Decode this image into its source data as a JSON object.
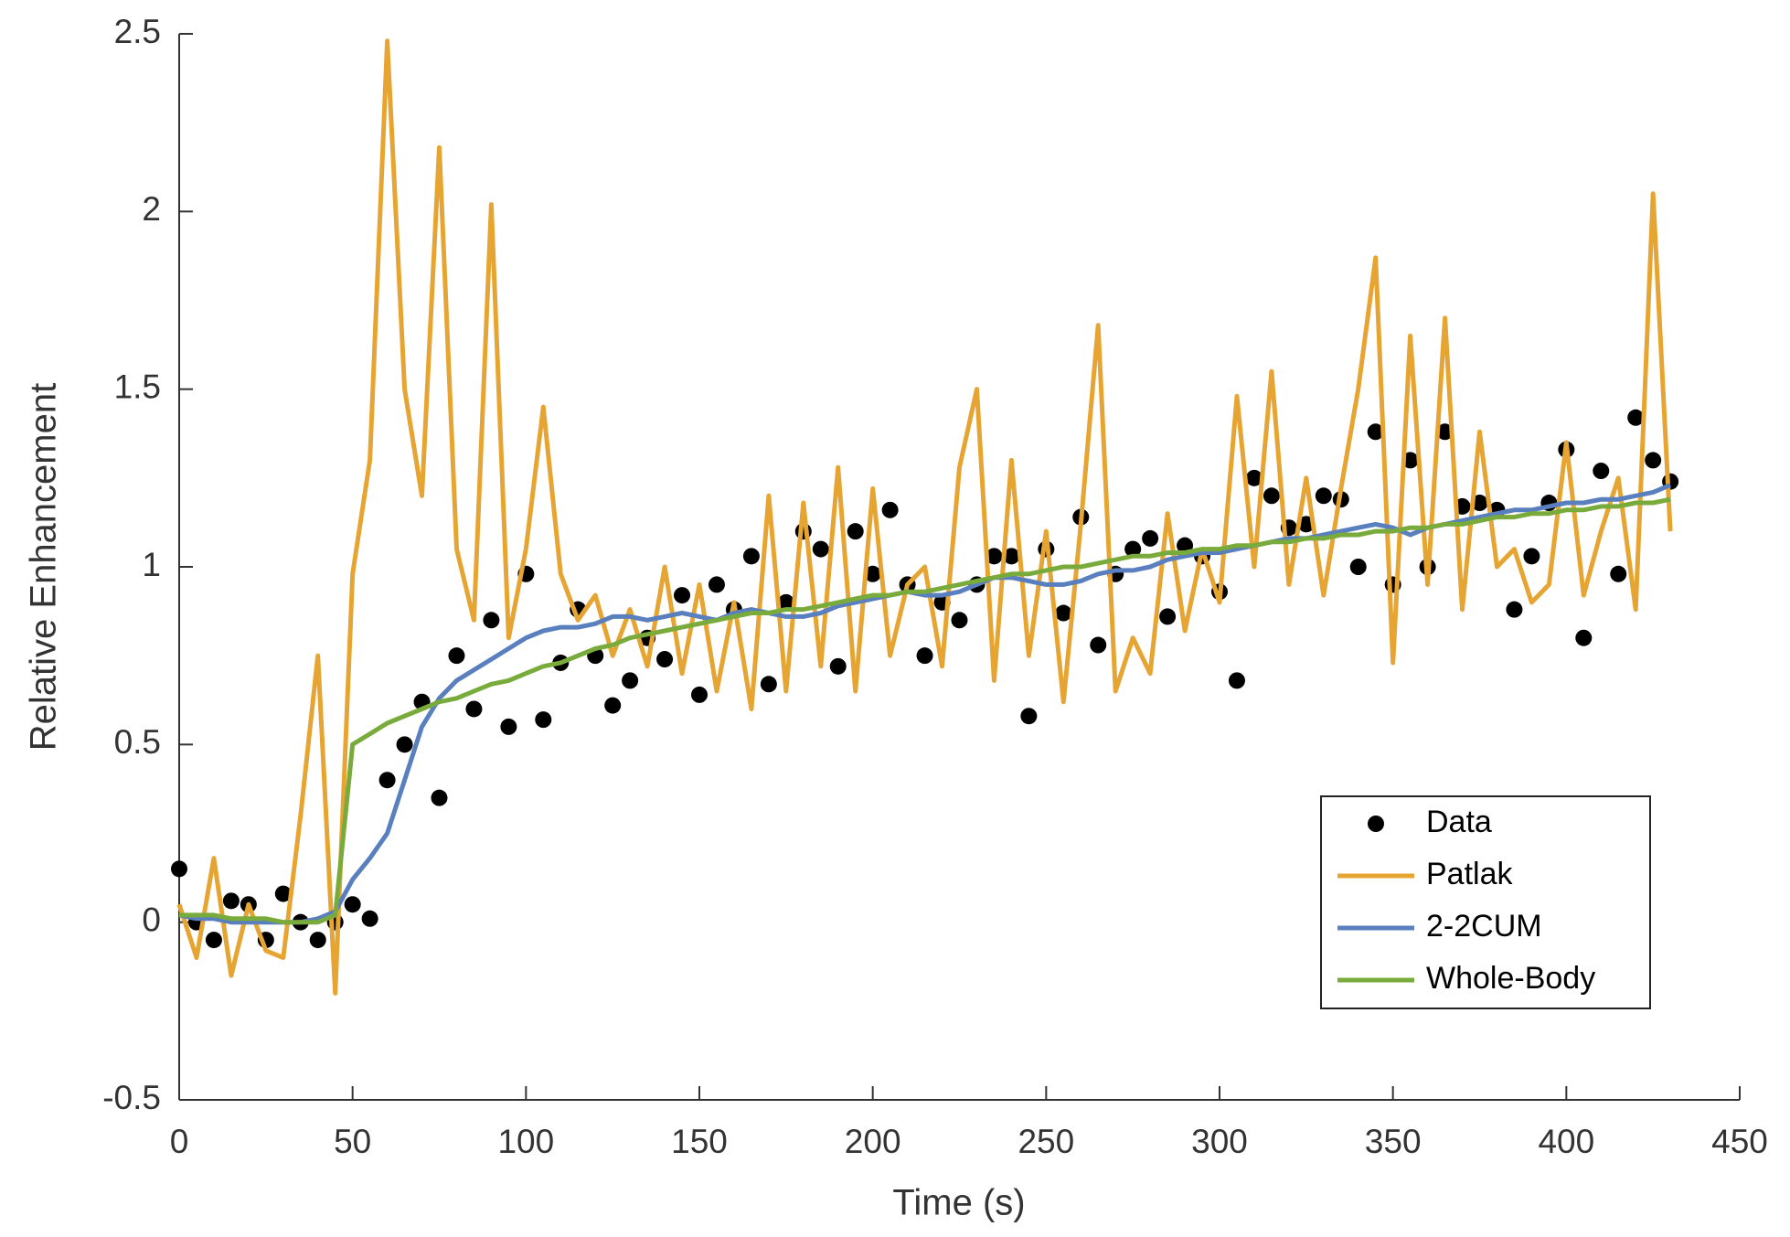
{
  "chart_data": {
    "type": "line",
    "xlabel": "Time (s)",
    "ylabel": "Relative Enhancement",
    "x": [
      0,
      5,
      10,
      15,
      20,
      25,
      30,
      35,
      40,
      45,
      50,
      55,
      60,
      65,
      70,
      75,
      80,
      85,
      90,
      95,
      100,
      105,
      110,
      115,
      120,
      125,
      130,
      135,
      140,
      145,
      150,
      155,
      160,
      165,
      170,
      175,
      180,
      185,
      190,
      195,
      200,
      205,
      210,
      215,
      220,
      225,
      230,
      235,
      240,
      245,
      250,
      255,
      260,
      265,
      270,
      275,
      280,
      285,
      290,
      295,
      300,
      305,
      310,
      315,
      320,
      325,
      330,
      335,
      340,
      345,
      350,
      355,
      360,
      365,
      370,
      375,
      380,
      385,
      390,
      395,
      400,
      405,
      410,
      415,
      420,
      425,
      430
    ],
    "series": [
      {
        "name": "Data",
        "color": "#000000",
        "mode": "markers",
        "values": [
          0.15,
          0.0,
          -0.05,
          0.06,
          0.05,
          -0.05,
          0.08,
          0.0,
          -0.05,
          0.0,
          0.05,
          0.01,
          0.4,
          0.5,
          0.62,
          0.35,
          0.75,
          0.6,
          0.85,
          0.55,
          0.98,
          0.57,
          0.73,
          0.88,
          0.75,
          0.61,
          0.68,
          0.8,
          0.74,
          0.92,
          0.64,
          0.95,
          0.88,
          1.03,
          0.67,
          0.9,
          1.1,
          1.05,
          0.72,
          1.1,
          0.98,
          1.16,
          0.95,
          0.75,
          0.9,
          0.85,
          0.95,
          1.03,
          1.03,
          0.58,
          1.05,
          0.87,
          1.14,
          0.78,
          0.98,
          1.05,
          1.08,
          0.86,
          1.06,
          1.03,
          0.93,
          0.68,
          1.25,
          1.2,
          1.11,
          1.12,
          1.2,
          1.19,
          1.0,
          1.38,
          0.95,
          1.3,
          1.0,
          1.38,
          1.17,
          1.18,
          1.16,
          0.88,
          1.03,
          1.18,
          1.33,
          0.8,
          1.27,
          0.98,
          1.42,
          1.3,
          1.24
        ]
      },
      {
        "name": "Patlak",
        "color": "#e6a532",
        "mode": "line",
        "values": [
          0.05,
          -0.1,
          0.18,
          -0.15,
          0.05,
          -0.08,
          -0.1,
          0.3,
          0.75,
          -0.2,
          0.98,
          1.3,
          2.48,
          1.5,
          1.2,
          2.18,
          1.05,
          0.85,
          2.02,
          0.8,
          1.05,
          1.45,
          0.98,
          0.85,
          0.92,
          0.75,
          0.88,
          0.72,
          1.0,
          0.7,
          0.95,
          0.65,
          0.9,
          0.6,
          1.2,
          0.65,
          1.18,
          0.72,
          1.28,
          0.65,
          1.22,
          0.75,
          0.95,
          1.0,
          0.72,
          1.28,
          1.5,
          0.68,
          1.3,
          0.75,
          1.1,
          0.62,
          1.12,
          1.68,
          0.65,
          0.8,
          0.7,
          1.15,
          0.82,
          1.05,
          0.9,
          1.48,
          1.0,
          1.55,
          0.95,
          1.25,
          0.92,
          1.22,
          1.5,
          1.87,
          0.73,
          1.65,
          0.95,
          1.7,
          0.88,
          1.38,
          1.0,
          1.05,
          0.9,
          0.95,
          1.35,
          0.92,
          1.1,
          1.25,
          0.88,
          2.05,
          1.1
        ]
      },
      {
        "name": "2-2CUM",
        "color": "#5a7fbe",
        "mode": "line",
        "values": [
          0.02,
          0.01,
          0.01,
          0.0,
          0.0,
          0.0,
          0.0,
          0.0,
          0.01,
          0.03,
          0.12,
          0.18,
          0.25,
          0.4,
          0.55,
          0.63,
          0.68,
          0.71,
          0.74,
          0.77,
          0.8,
          0.82,
          0.83,
          0.83,
          0.84,
          0.86,
          0.86,
          0.85,
          0.86,
          0.87,
          0.86,
          0.85,
          0.87,
          0.88,
          0.87,
          0.86,
          0.86,
          0.87,
          0.89,
          0.9,
          0.91,
          0.92,
          0.93,
          0.92,
          0.92,
          0.93,
          0.95,
          0.97,
          0.97,
          0.96,
          0.95,
          0.95,
          0.96,
          0.98,
          0.99,
          0.99,
          1.0,
          1.02,
          1.03,
          1.04,
          1.04,
          1.05,
          1.06,
          1.07,
          1.08,
          1.08,
          1.09,
          1.1,
          1.11,
          1.12,
          1.11,
          1.09,
          1.11,
          1.12,
          1.13,
          1.14,
          1.15,
          1.16,
          1.16,
          1.17,
          1.18,
          1.18,
          1.19,
          1.19,
          1.2,
          1.21,
          1.23
        ]
      },
      {
        "name": "Whole-Body",
        "color": "#79ab3c",
        "mode": "line",
        "values": [
          0.02,
          0.02,
          0.02,
          0.01,
          0.01,
          0.01,
          0.0,
          0.0,
          0.0,
          0.02,
          0.5,
          0.53,
          0.56,
          0.58,
          0.6,
          0.62,
          0.63,
          0.65,
          0.67,
          0.68,
          0.7,
          0.72,
          0.73,
          0.75,
          0.77,
          0.78,
          0.8,
          0.81,
          0.82,
          0.83,
          0.84,
          0.85,
          0.86,
          0.87,
          0.87,
          0.88,
          0.88,
          0.89,
          0.9,
          0.91,
          0.92,
          0.92,
          0.93,
          0.93,
          0.94,
          0.95,
          0.96,
          0.97,
          0.98,
          0.98,
          0.99,
          1.0,
          1.0,
          1.01,
          1.02,
          1.03,
          1.03,
          1.04,
          1.04,
          1.05,
          1.05,
          1.06,
          1.06,
          1.07,
          1.07,
          1.08,
          1.08,
          1.09,
          1.09,
          1.1,
          1.1,
          1.11,
          1.11,
          1.12,
          1.12,
          1.13,
          1.14,
          1.14,
          1.15,
          1.15,
          1.16,
          1.16,
          1.17,
          1.17,
          1.18,
          1.18,
          1.19
        ]
      }
    ],
    "xlim": [
      0,
      450
    ],
    "xticks": [
      0,
      50,
      100,
      150,
      200,
      250,
      300,
      350,
      400,
      450
    ],
    "ylim": [
      -0.5,
      2.5
    ],
    "yticks": [
      -0.5,
      0,
      0.5,
      1,
      1.5,
      2,
      2.5
    ],
    "grid": false,
    "legend": "lower right"
  }
}
